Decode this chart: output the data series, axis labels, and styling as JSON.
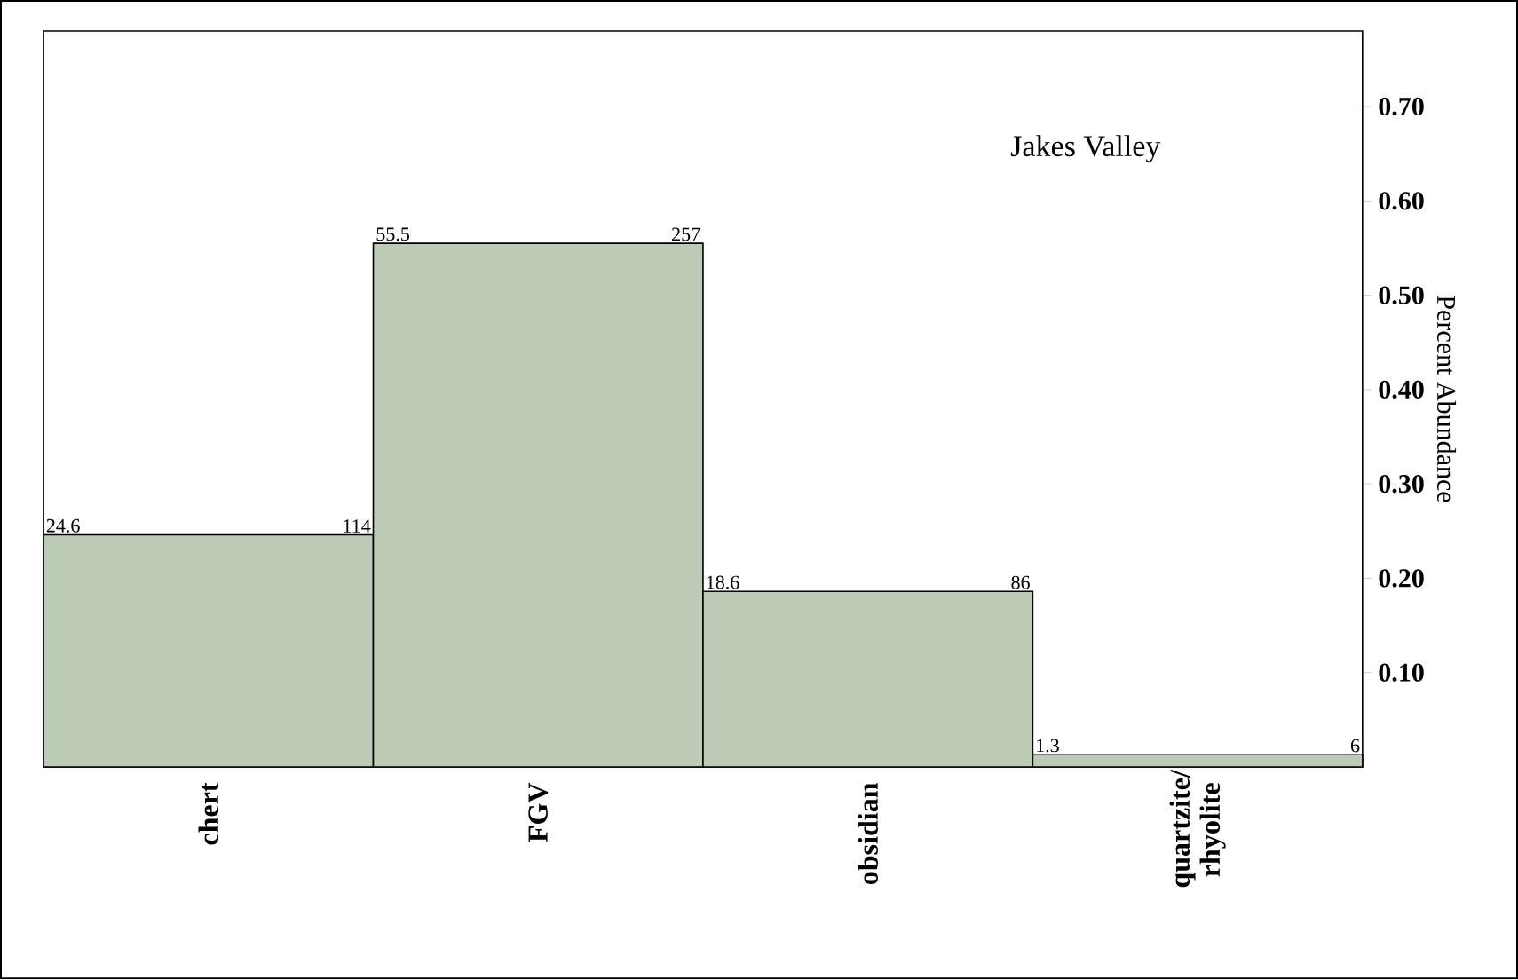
{
  "chart_data": {
    "type": "bar",
    "title": "Jakes Valley",
    "ylabel": "Percent Abundance",
    "categories": [
      "chert",
      "FGV",
      "obsidian",
      "quartzite/ rhyolite"
    ],
    "values": [
      0.246,
      0.555,
      0.186,
      0.013
    ],
    "annotations": [
      "24.6",
      "114",
      "55.5",
      "257",
      "18.6",
      "86",
      "1.3",
      "6"
    ],
    "color": "#bccbb6",
    "ylim": [
      0,
      0.78
    ],
    "yticks": [
      {
        "value": 0.1,
        "label": "0.10"
      },
      {
        "value": 0.2,
        "label": "0.20"
      },
      {
        "value": 0.3,
        "label": "0.30"
      },
      {
        "value": 0.4,
        "label": "0.40"
      },
      {
        "value": 0.5,
        "label": "0.50"
      },
      {
        "value": 0.6,
        "label": "0.60"
      },
      {
        "value": 0.7,
        "label": "0.70"
      }
    ]
  }
}
